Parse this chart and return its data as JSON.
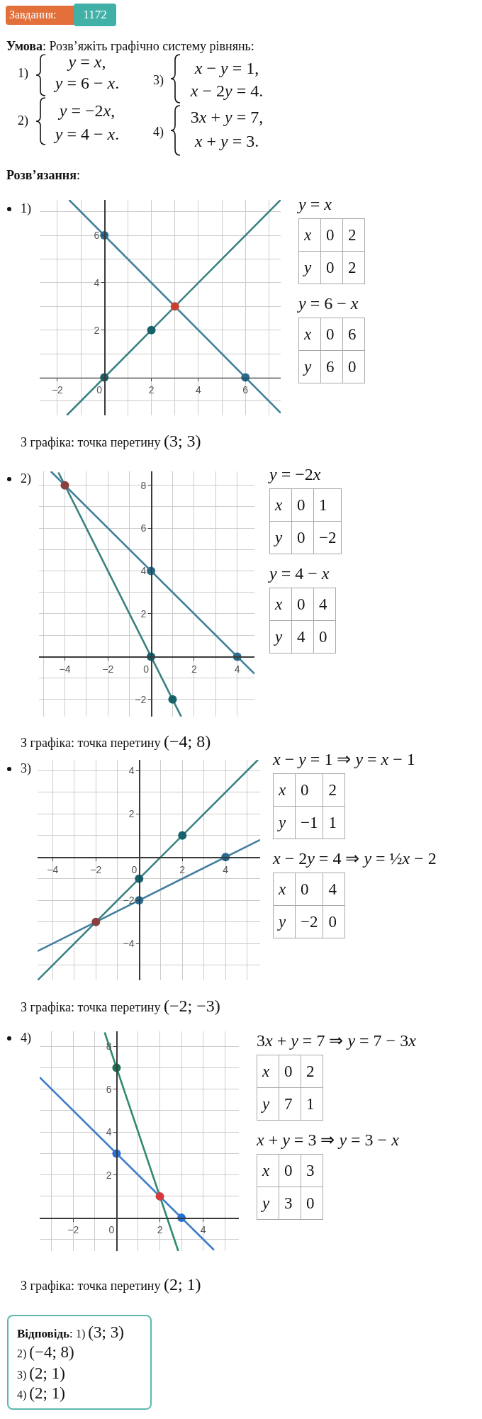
{
  "chart_data": [
    {
      "type": "other",
      "annotations": [
        "Завдання:",
        "1172",
        "Умова",
        ": Розв’яжіть графічно систему рівнянь:",
        "1)",
        "y = x,",
        "y = 6 − x.",
        "2)",
        "y = −2x,",
        "y = 4 − x.",
        "3)",
        "x − y = 1,",
        "x − 2y = 4.",
        "4)",
        "3x + y = 7,",
        "x + y = 3.",
        "Розв’язання",
        ":"
      ]
    },
    {
      "type": "line",
      "title": "1)",
      "xlim": [
        -2.75,
        7.5
      ],
      "ylim": [
        -1.6,
        7.5
      ],
      "xticks": [
        -2,
        {
          "value": -1,
          "label": null
        },
        0,
        {
          "value": 1,
          "label": null
        },
        2,
        {
          "value": 3,
          "label": null
        },
        4,
        {
          "value": 5,
          "label": null
        },
        6,
        {
          "value": 7,
          "label": null
        }
      ],
      "yticks": [
        {
          "value": -1,
          "label": null
        },
        {
          "value": 0,
          "label": null
        },
        {
          "value": 1,
          "label": null
        },
        2,
        {
          "value": 3,
          "label": null
        },
        4,
        {
          "value": 5,
          "label": null
        },
        6,
        {
          "value": 7,
          "label": null
        }
      ],
      "grid": true,
      "marker": "circle",
      "series": [
        {
          "type": "line",
          "marker": "none",
          "color": "#3a8082",
          "x": [
            -1.6,
            7.5
          ],
          "values": [
            -1.6,
            7.5
          ]
        },
        {
          "type": "line",
          "marker": "none",
          "color": "#41809c",
          "x": [
            -1.5,
            7.5
          ],
          "values": [
            7.5,
            -1.5
          ]
        },
        {
          "type": "scatter",
          "color": "#17616a",
          "x": [
            0,
            2
          ],
          "values": [
            0,
            2
          ]
        },
        {
          "type": "scatter",
          "color": "#2a6a8c",
          "x": [
            0,
            6
          ],
          "values": [
            6,
            0
          ]
        },
        {
          "type": "scatter",
          "color": "#c8402f",
          "x": [
            3
          ],
          "values": [
            3
          ]
        }
      ],
      "annotations": [
        "З графіка: точка перетину",
        "(3; 3)"
      ]
    },
    {
      "type": "other",
      "annotations": [
        "y = x",
        "x",
        "0",
        "2",
        "y",
        "0",
        "2",
        "y = 6 − x",
        "x",
        "0",
        "6",
        "y",
        "6",
        "0"
      ]
    },
    {
      "type": "line",
      "title": "2)",
      "xlim": [
        -5.2,
        4.8
      ],
      "ylim": [
        -2.8,
        8.65
      ],
      "xticks": [
        {
          "value": -5,
          "label": null
        },
        -4,
        {
          "value": -3,
          "label": null
        },
        -2,
        {
          "value": -1,
          "label": null
        },
        0,
        {
          "value": 1,
          "label": null
        },
        2,
        {
          "value": 3,
          "label": null
        },
        4
      ],
      "yticks": [
        -2,
        {
          "value": -1,
          "label": null
        },
        {
          "value": 0,
          "label": null
        },
        {
          "value": 1,
          "label": null
        },
        2,
        {
          "value": 3,
          "label": null
        },
        4,
        {
          "value": 5,
          "label": null
        },
        6,
        {
          "value": 7,
          "label": null
        },
        8
      ],
      "grid": true,
      "marker": "circle",
      "series": [
        {
          "type": "line",
          "marker": "none",
          "color": "#3a8082",
          "x": [
            -4.3,
            1.4
          ],
          "values": [
            8.6,
            -2.8
          ]
        },
        {
          "type": "line",
          "marker": "none",
          "color": "#41809c",
          "x": [
            -4.65,
            4.8
          ],
          "values": [
            8.65,
            -0.8
          ]
        },
        {
          "type": "scatter",
          "color": "#17616a",
          "x": [
            0,
            1
          ],
          "values": [
            0,
            -2
          ]
        },
        {
          "type": "scatter",
          "color": "#2a6a8c",
          "x": [
            0,
            4
          ],
          "values": [
            4,
            0
          ]
        },
        {
          "type": "scatter",
          "color": "#8a4040",
          "x": [
            -4
          ],
          "values": [
            8
          ]
        }
      ],
      "annotations": [
        "З графіка: точка перетину",
        "(−4; 8)"
      ]
    },
    {
      "type": "other",
      "annotations": [
        "y = −2x",
        "x",
        "0",
        "1",
        "y",
        "0",
        "−2",
        "y = 4 − x",
        "x",
        "0",
        "4",
        "y",
        "4",
        "0"
      ]
    },
    {
      "type": "line",
      "title": "3)",
      "xlim": [
        -4.7,
        5.6
      ],
      "ylim": [
        -5.7,
        4.5
      ],
      "xticks": [
        -4,
        {
          "value": -3,
          "label": null
        },
        -2,
        {
          "value": -1,
          "label": null
        },
        0,
        {
          "value": 1,
          "label": null
        },
        2,
        {
          "value": 3,
          "label": null
        },
        4,
        {
          "value": 5,
          "label": null
        }
      ],
      "yticks": [
        {
          "value": -5,
          "label": null
        },
        -4,
        {
          "value": -3,
          "label": null
        },
        -2,
        {
          "value": -1,
          "label": null
        },
        {
          "value": 0,
          "label": null
        },
        {
          "value": 1,
          "label": null
        },
        2,
        {
          "value": 3,
          "label": null
        },
        4
      ],
      "grid": true,
      "marker": "circle",
      "series": [
        {
          "type": "line",
          "marker": "none",
          "color": "#3a8082",
          "x": [
            -4.7,
            5.5
          ],
          "values": [
            -5.7,
            4.5
          ]
        },
        {
          "type": "line",
          "marker": "none",
          "color": "#41809c",
          "x": [
            -4.7,
            5.6
          ],
          "values": [
            -4.35,
            0.8
          ]
        },
        {
          "type": "scatter",
          "color": "#17616a",
          "x": [
            0,
            2
          ],
          "values": [
            -1,
            1
          ]
        },
        {
          "type": "scatter",
          "color": "#2a6a8c",
          "x": [
            0,
            4
          ],
          "values": [
            -2,
            0
          ]
        },
        {
          "type": "scatter",
          "color": "#8a4040",
          "x": [
            -2
          ],
          "values": [
            -3
          ]
        }
      ],
      "annotations": [
        "З графіка: точка перетину",
        "(−2; −3)"
      ]
    },
    {
      "type": "other",
      "annotations": [
        "x − y = 1 ⇒ y = x − 1",
        "x",
        "0",
        "2",
        "y",
        "−1",
        "1",
        "x − 2y = 4 ⇒ y = ½x − 2",
        "x",
        "0",
        "4",
        "y",
        "−2",
        "0"
      ]
    },
    {
      "type": "line",
      "title": "4)",
      "xlim": [
        -3.55,
        5.65
      ],
      "ylim": [
        -1.55,
        8.7
      ],
      "xticks": [
        {
          "value": -3,
          "label": null
        },
        -2,
        {
          "value": -1,
          "label": null
        },
        0,
        {
          "value": 1,
          "label": null
        },
        2,
        {
          "value": 3,
          "label": null
        },
        4,
        {
          "value": 5,
          "label": null
        }
      ],
      "yticks": [
        {
          "value": -1,
          "label": null
        },
        {
          "value": 0,
          "label": null
        },
        {
          "value": 1,
          "label": null
        },
        2,
        {
          "value": 3,
          "label": null
        },
        4,
        {
          "value": 5,
          "label": null
        },
        6,
        {
          "value": 7,
          "label": null
        },
        8
      ],
      "grid": true,
      "marker": "circle",
      "series": [
        {
          "type": "line",
          "marker": "none",
          "color": "#2e8b6e",
          "x": [
            -0.55,
            2.85
          ],
          "values": [
            8.65,
            -1.55
          ]
        },
        {
          "type": "line",
          "marker": "none",
          "color": "#3d7cc9",
          "x": [
            -3.55,
            4.5
          ],
          "values": [
            6.55,
            -1.5
          ]
        },
        {
          "type": "scatter",
          "colors": [
            "#1e6f55",
            "#d63a3a"
          ],
          "x": [
            0,
            2
          ],
          "values": [
            7,
            1
          ]
        },
        {
          "type": "scatter",
          "color": "#2a6fd6",
          "x": [
            0,
            3
          ],
          "values": [
            3,
            0
          ]
        }
      ],
      "annotations": [
        "З графіка: точка перетину",
        "(2; 1)"
      ]
    },
    {
      "type": "other",
      "annotations": [
        "3x + y = 7 ⇒ y = 7 − 3x",
        "x",
        "0",
        "2",
        "y",
        "7",
        "1",
        "x + y = 3 ⇒ y = 3 − x",
        "x",
        "0",
        "3",
        "y",
        "3",
        "0"
      ]
    },
    {
      "type": "other",
      "annotations": [
        "Відповідь",
        ":",
        "1)",
        "(3; 3)",
        "2)",
        "(−4; 8)",
        "3)",
        "(2; 1)",
        "4)",
        "(2; 1)"
      ]
    }
  ]
}
